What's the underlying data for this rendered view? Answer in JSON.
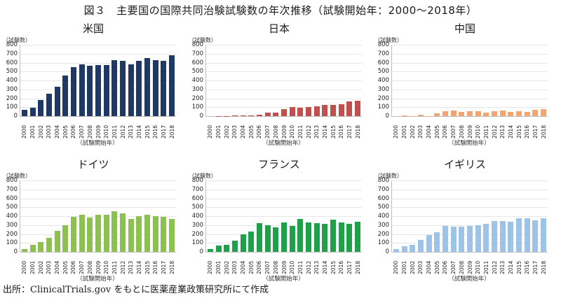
{
  "figure": {
    "title": "図３　主要国の国際共同治験試験数の年次推移（試験開始年：2000〜2018年）",
    "source": "出所：ClinicalTrials.gov をもとに医薬産業政策研究所にて作成"
  },
  "chart_data": [
    {
      "type": "bar",
      "title": "米国",
      "ylabel": "（試験数）",
      "xlabel": "（試験開始年）",
      "ylim": [
        0,
        800
      ],
      "yticks": [
        0,
        100,
        200,
        300,
        400,
        500,
        600,
        700,
        800
      ],
      "grid": true,
      "color": "#1f3864",
      "categories": [
        "2000",
        "2001",
        "2002",
        "2003",
        "2004",
        "2005",
        "2006",
        "2007",
        "2008",
        "2009",
        "2010",
        "2011",
        "2012",
        "2013",
        "2014",
        "2015",
        "2016",
        "2017",
        "2018"
      ],
      "values": [
        68,
        97,
        178,
        252,
        326,
        457,
        546,
        578,
        565,
        573,
        573,
        625,
        617,
        580,
        617,
        651,
        630,
        622,
        680
      ]
    },
    {
      "type": "bar",
      "title": "日本",
      "ylabel": "（試験数）",
      "xlabel": "（試験開始年）",
      "ylim": [
        0,
        800
      ],
      "yticks": [
        0,
        100,
        200,
        300,
        400,
        500,
        600,
        700,
        800
      ],
      "grid": true,
      "color": "#c0504d",
      "categories": [
        "2000",
        "2001",
        "2002",
        "2003",
        "2004",
        "2005",
        "2006",
        "2007",
        "2008",
        "2009",
        "2010",
        "2011",
        "2012",
        "2013",
        "2014",
        "2015",
        "2016",
        "2017",
        "2018"
      ],
      "values": [
        0,
        3,
        1,
        5,
        6,
        8,
        15,
        38,
        42,
        80,
        100,
        95,
        102,
        112,
        125,
        126,
        137,
        163,
        172
      ]
    },
    {
      "type": "bar",
      "title": "中国",
      "ylabel": "（試験数）",
      "xlabel": "（試験開始年）",
      "ylim": [
        0,
        800
      ],
      "yticks": [
        0,
        100,
        200,
        300,
        400,
        500,
        600,
        700,
        800
      ],
      "grid": true,
      "color": "#f4a470",
      "categories": [
        "2000",
        "2001",
        "2002",
        "2003",
        "2004",
        "2005",
        "2006",
        "2007",
        "2008",
        "2009",
        "2010",
        "2011",
        "2012",
        "2013",
        "2014",
        "2015",
        "2016",
        "2017",
        "2018"
      ],
      "values": [
        0,
        10,
        3,
        18,
        3,
        28,
        52,
        60,
        50,
        52,
        52,
        38,
        52,
        60,
        45,
        52,
        48,
        72,
        78
      ]
    },
    {
      "type": "bar",
      "title": "ドイツ",
      "ylabel": "（試験数）",
      "xlabel": "（試験開始年）",
      "ylim": [
        0,
        800
      ],
      "yticks": [
        0,
        100,
        200,
        300,
        400,
        500,
        600,
        700,
        800
      ],
      "grid": true,
      "color": "#8cc152",
      "categories": [
        "2000",
        "2001",
        "2002",
        "2003",
        "2004",
        "2005",
        "2006",
        "2007",
        "2008",
        "2009",
        "2010",
        "2011",
        "2012",
        "2013",
        "2014",
        "2015",
        "2016",
        "2017",
        "2018"
      ],
      "values": [
        34,
        75,
        112,
        159,
        237,
        300,
        393,
        419,
        383,
        414,
        414,
        456,
        430,
        370,
        398,
        419,
        398,
        393,
        370
      ]
    },
    {
      "type": "bar",
      "title": "フランス",
      "ylabel": "（試験数）",
      "xlabel": "（試験開始年）",
      "ylim": [
        0,
        800
      ],
      "yticks": [
        0,
        100,
        200,
        300,
        400,
        500,
        600,
        700,
        800
      ],
      "grid": true,
      "color": "#1fa14a",
      "categories": [
        "2000",
        "2001",
        "2002",
        "2003",
        "2004",
        "2005",
        "2006",
        "2007",
        "2008",
        "2009",
        "2010",
        "2011",
        "2012",
        "2013",
        "2014",
        "2015",
        "2016",
        "2017",
        "2018"
      ],
      "values": [
        29,
        68,
        81,
        122,
        193,
        224,
        320,
        297,
        276,
        326,
        292,
        367,
        333,
        320,
        315,
        357,
        333,
        310,
        341
      ]
    },
    {
      "type": "bar",
      "title": "イギリス",
      "ylabel": "（試験数）",
      "xlabel": "（試験開始年）",
      "ylim": [
        0,
        800
      ],
      "yticks": [
        0,
        100,
        200,
        300,
        400,
        500,
        600,
        700,
        800
      ],
      "grid": true,
      "color": "#9dc3e6",
      "categories": [
        "2000",
        "2001",
        "2002",
        "2003",
        "2004",
        "2005",
        "2006",
        "2007",
        "2008",
        "2009",
        "2010",
        "2011",
        "2012",
        "2013",
        "2014",
        "2015",
        "2016",
        "2017",
        "2018"
      ],
      "values": [
        29,
        65,
        81,
        135,
        185,
        216,
        292,
        284,
        281,
        287,
        300,
        315,
        346,
        344,
        338,
        375,
        375,
        354,
        375
      ]
    }
  ]
}
